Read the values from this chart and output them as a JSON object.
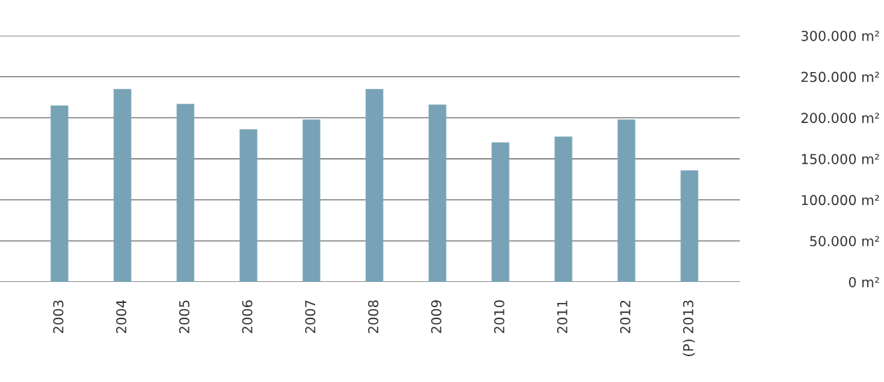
{
  "chart_data": {
    "type": "bar",
    "categories": [
      "2003",
      "2004",
      "2005",
      "2006",
      "2007",
      "2008",
      "2009",
      "2010",
      "2011",
      "2012",
      "(P) 2013"
    ],
    "values": [
      215000,
      235000,
      217000,
      186000,
      198000,
      235000,
      216000,
      170000,
      177000,
      198000,
      136000
    ],
    "color": "#78a3b7",
    "ylim": [
      0,
      300000
    ],
    "yticks": [
      {
        "value": 0,
        "label": "0 m²"
      },
      {
        "value": 50000,
        "label": "50.000 m²"
      },
      {
        "value": 100000,
        "label": "100.000 m²"
      },
      {
        "value": 150000,
        "label": "150.000 m²"
      },
      {
        "value": 200000,
        "label": "200.000 m²"
      },
      {
        "value": 250000,
        "label": "250.000 m²"
      },
      {
        "value": 300000,
        "label": "300.000 m²"
      }
    ],
    "grid": "y",
    "legend": false
  }
}
